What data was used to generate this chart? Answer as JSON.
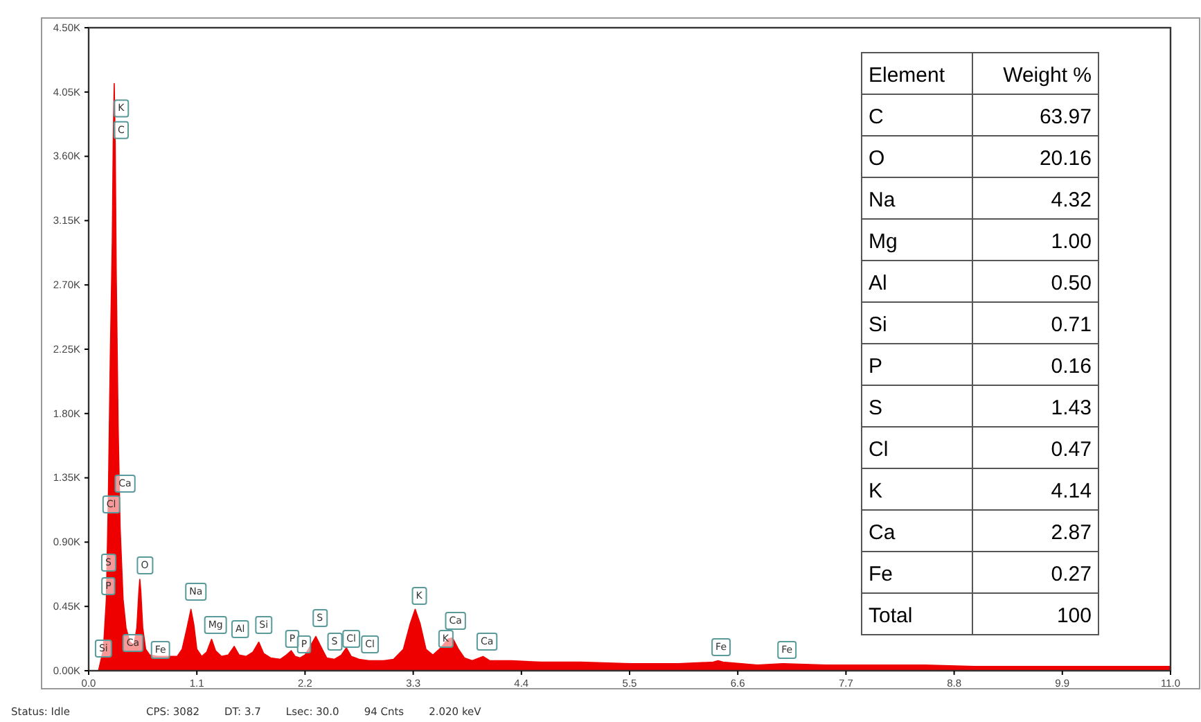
{
  "chart_data": [
    {
      "type": "area",
      "x": [
        0.0,
        0.1,
        0.12,
        0.15,
        0.18,
        0.2,
        0.22,
        0.24,
        0.25,
        0.26,
        0.27,
        0.28,
        0.3,
        0.32,
        0.35,
        0.38,
        0.42,
        0.46,
        0.49,
        0.51,
        0.52,
        0.53,
        0.55,
        0.58,
        0.62,
        0.7,
        0.8,
        0.9,
        0.95,
        1.0,
        1.04,
        1.07,
        1.1,
        1.15,
        1.2,
        1.25,
        1.29,
        1.35,
        1.42,
        1.48,
        1.53,
        1.6,
        1.67,
        1.73,
        1.78,
        1.85,
        1.95,
        2.01,
        2.06,
        2.1,
        2.15,
        2.2,
        2.26,
        2.31,
        2.36,
        2.42,
        2.5,
        2.57,
        2.62,
        2.67,
        2.75,
        2.85,
        3.0,
        3.1,
        3.2,
        3.27,
        3.32,
        3.37,
        3.43,
        3.5,
        3.58,
        3.65,
        3.7,
        3.76,
        3.82,
        3.9,
        4.01,
        4.08,
        4.3,
        4.6,
        5.0,
        5.5,
        6.0,
        6.35,
        6.4,
        6.45,
        6.8,
        7.06,
        7.5,
        8.0,
        8.5,
        9.0,
        9.5,
        10.0,
        10.5,
        11.0
      ],
      "series": [
        {
          "color": "#ee0000",
          "values": [
            0,
            0,
            60,
            150,
            500,
            1200,
            2200,
            3000,
            3700,
            4110,
            3700,
            2800,
            1700,
            1000,
            500,
            300,
            200,
            180,
            300,
            550,
            640,
            560,
            300,
            150,
            110,
            100,
            100,
            100,
            150,
            300,
            430,
            320,
            150,
            100,
            130,
            220,
            140,
            100,
            110,
            170,
            110,
            100,
            130,
            200,
            120,
            90,
            80,
            110,
            140,
            100,
            90,
            110,
            180,
            240,
            170,
            90,
            80,
            110,
            160,
            100,
            80,
            70,
            70,
            80,
            150,
            330,
            430,
            330,
            150,
            110,
            160,
            220,
            230,
            150,
            90,
            70,
            100,
            70,
            70,
            60,
            60,
            50,
            50,
            60,
            70,
            60,
            40,
            50,
            40,
            40,
            40,
            30,
            30,
            30,
            30,
            30
          ]
        }
      ],
      "xlim": [
        0,
        11.0
      ],
      "xticks": [
        {
          "value": 0,
          "label": "0.0"
        },
        1.1,
        2.2,
        3.3,
        4.4,
        5.5,
        6.6,
        7.7,
        8.8,
        9.9,
        {
          "value": 11,
          "label": "11.0"
        }
      ],
      "ylim": [
        0,
        4500
      ],
      "yticks": [
        {
          "value": 0,
          "label": "0.00K"
        },
        {
          "value": 450,
          "label": "0.45K"
        },
        {
          "value": 900,
          "label": "0.90K"
        },
        {
          "value": 1350,
          "label": "1.35K"
        },
        {
          "value": 1800,
          "label": "1.80K"
        },
        {
          "value": 2250,
          "label": "2.25K"
        },
        {
          "value": 2700,
          "label": "2.70K"
        },
        {
          "value": 3150,
          "label": "3.15K"
        },
        {
          "value": 3600,
          "label": "3.60K"
        },
        {
          "value": 4050,
          "label": "4.05K"
        },
        {
          "value": 4500,
          "label": "4.50K"
        }
      ],
      "annotations": [
        {
          "text": "K",
          "x": 0.33,
          "y": 3945
        },
        {
          "text": "C",
          "x": 0.33,
          "y": 3793
        },
        {
          "text": "Ca",
          "x": 0.37,
          "y": 1319
        },
        {
          "text": "Cl",
          "x": 0.23,
          "y": 1173
        },
        {
          "text": "S",
          "x": 0.2,
          "y": 766
        },
        {
          "text": "P",
          "x": 0.2,
          "y": 601
        },
        {
          "text": "Si",
          "x": 0.15,
          "y": 165
        },
        {
          "text": "Ca",
          "x": 0.45,
          "y": 204
        },
        {
          "text": "Fe",
          "x": 0.73,
          "y": 155
        },
        {
          "text": "O",
          "x": 0.57,
          "y": 747
        },
        {
          "text": "Na",
          "x": 1.09,
          "y": 562
        },
        {
          "text": "Mg",
          "x": 1.29,
          "y": 330
        },
        {
          "text": "Al",
          "x": 1.54,
          "y": 301
        },
        {
          "text": "Si",
          "x": 1.78,
          "y": 330
        },
        {
          "text": "P",
          "x": 2.07,
          "y": 233
        },
        {
          "text": "P",
          "x": 2.19,
          "y": 194
        },
        {
          "text": "S",
          "x": 2.35,
          "y": 378
        },
        {
          "text": "S",
          "x": 2.5,
          "y": 213
        },
        {
          "text": "Cl",
          "x": 2.67,
          "y": 233
        },
        {
          "text": "Cl",
          "x": 2.86,
          "y": 194
        },
        {
          "text": "K",
          "x": 3.36,
          "y": 533
        },
        {
          "text": "Ca",
          "x": 3.73,
          "y": 359
        },
        {
          "text": "K",
          "x": 3.63,
          "y": 233
        },
        {
          "text": "Ca",
          "x": 4.05,
          "y": 213
        },
        {
          "text": "Fe",
          "x": 6.43,
          "y": 175
        },
        {
          "text": "Fe",
          "x": 7.1,
          "y": 155
        },
        "Status: Idle",
        "CPS: 3082",
        "DT: 3.7",
        "Lsec: 30.0",
        "94 Cnts",
        "2.020 keV"
      ]
    },
    {
      "type": "other",
      "xlabel": "Element",
      "ylabel": "Weight %",
      "categories": [
        "C",
        "O",
        "Na",
        "Mg",
        "Al",
        "Si",
        "P",
        "S",
        "Cl",
        "K",
        "Ca",
        "Fe",
        "Total"
      ],
      "value_labels": [
        "63.97",
        "20.16",
        "4.32",
        "1.00",
        "0.50",
        "0.71",
        "0.16",
        "1.43",
        "0.47",
        "4.14",
        "2.87",
        "0.27",
        "100"
      ]
    }
  ]
}
